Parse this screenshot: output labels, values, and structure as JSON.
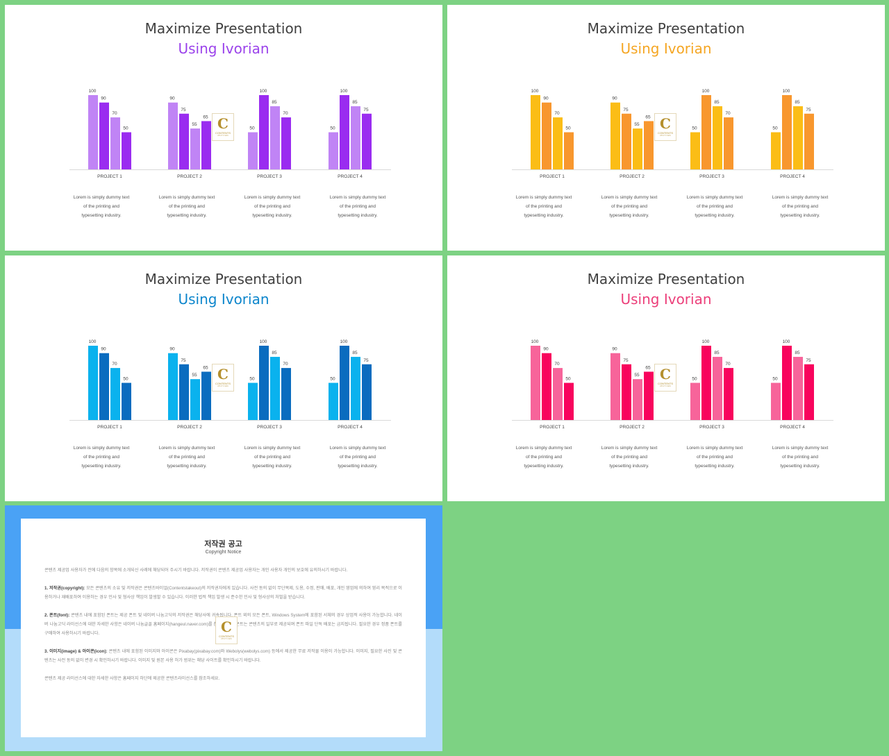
{
  "slides": [
    {
      "title": "Maximize Presentation",
      "subtitle": "Using Ivorian",
      "accent": "#9b43eb",
      "colors": {
        "light": "#c084f5",
        "dark": "#9a2cf0"
      }
    },
    {
      "title": "Maximize Presentation",
      "subtitle": "Using Ivorian",
      "accent": "#f5a623",
      "colors": {
        "light": "#fbbd16",
        "dark": "#f8972e"
      }
    },
    {
      "title": "Maximize Presentation",
      "subtitle": "Using Ivorian",
      "accent": "#0d86cc",
      "colors": {
        "light": "#0ab2ee",
        "dark": "#0a6cbf"
      }
    },
    {
      "title": "Maximize Presentation",
      "subtitle": "Using Ivorian",
      "accent": "#ec3f7a",
      "colors": {
        "light": "#f7649a",
        "dark": "#f8045d"
      }
    }
  ],
  "captions": [
    "Lorem is simply dummy text",
    "of the printing and",
    "typesetting industry."
  ],
  "logo": {
    "letter": "C",
    "text": "CONTENTS",
    "small": "WHAT'S NEW"
  },
  "chart_data": {
    "type": "bar",
    "categories": [
      "PROJECT 1",
      "PROJECT 2",
      "PROJECT 3",
      "PROJECT 4"
    ],
    "series": [
      {
        "values": [
          100,
          90,
          70,
          50
        ],
        "shades": [
          "light",
          "dark",
          "light",
          "dark"
        ]
      },
      {
        "values": [
          90,
          75,
          55,
          65
        ],
        "shades": [
          "light",
          "dark",
          "light",
          "dark"
        ]
      },
      {
        "values": [
          50,
          100,
          85,
          70
        ],
        "shades": [
          "light",
          "dark",
          "light",
          "dark"
        ]
      },
      {
        "values": [
          50,
          100,
          85,
          75
        ],
        "shades": [
          "light",
          "dark",
          "light",
          "dark"
        ]
      }
    ],
    "ylim": [
      0,
      100
    ],
    "grid": false,
    "legend": "none"
  },
  "notice": {
    "title": "저작권 공고",
    "subtitle": "Copyright Notice",
    "intro": "콘텐츠 제공업 사용자가 전에 다음의 항목에 소개되신 사례에 해당되어 주시기 바랍니다. 저작권이 콘텐츠 제공업 사용자는 개인 사용자 개인의 보호에 유의하시기 바랍니다.",
    "p1_head": "1. 저작권(copyright):",
    "p1_body": " 모든 콘텐츠의 소유 및 저작권은 콘텐츠바이얼(Contentstakeout)의 저작권자에게 있습니다. 사전 동의 없이 무단복제, 도용, 수정, 판매, 배포, 개인 영업에 의하여 영리 목적으로 이용하거나 재배포하여 이용하는 경우 민사 및 형사상 책임이 발생할 수 있습니다. 이러한 법적 책임 발생 시 준수한 민사 및 형사상의 처벌을 받습니다.",
    "p2_head": "2. 폰트(font):",
    "p2_body": " 콘텐츠 내에 포함된 폰트는 제공 폰트 및 네이버 나눔고딕의 저작권은 해당사에 귀속됩니다. 폰트 외의 모든 폰트, Windows System에 포함된 서체의 경우 상업적 사용이 가능합니다. 네이버 나눔고딕 라이선스에 대한 자세한 사항은 네이버 나눔글꼴 홈페이지(hangeul.naver.com)를 참조하세요. 폰트는 콘텐츠의 일부로 제공되며 폰트 파일 단독 배포는 금지됩니다. 필요한 경우 정품 폰트를 구매하여 사용하시기 바랍니다.",
    "p3_head": "3. 이미지(image) & 아이콘(icon):",
    "p3_body": " 콘텐츠 내에 포함된 이미지와 아이콘은 Pixabay(pixabay.com)와 Webolys(webolys.com) 등에서 제공한 무료 저작물 이용이 가능합니다. 이미지, 필요한 사진 및 콘텐츠는 사전 동의 없이 변경 시 확인하시기 바랍니다. 이미지 및 원본 사용 허가 범위는 해당 사이트를 확인하시기 바랍니다.",
    "outro": "콘텐츠 제공 라이선스에 대한 자세한 사항은 홈페이지 하단에 제공한 콘텐츠라이선스를 참조하세요."
  }
}
